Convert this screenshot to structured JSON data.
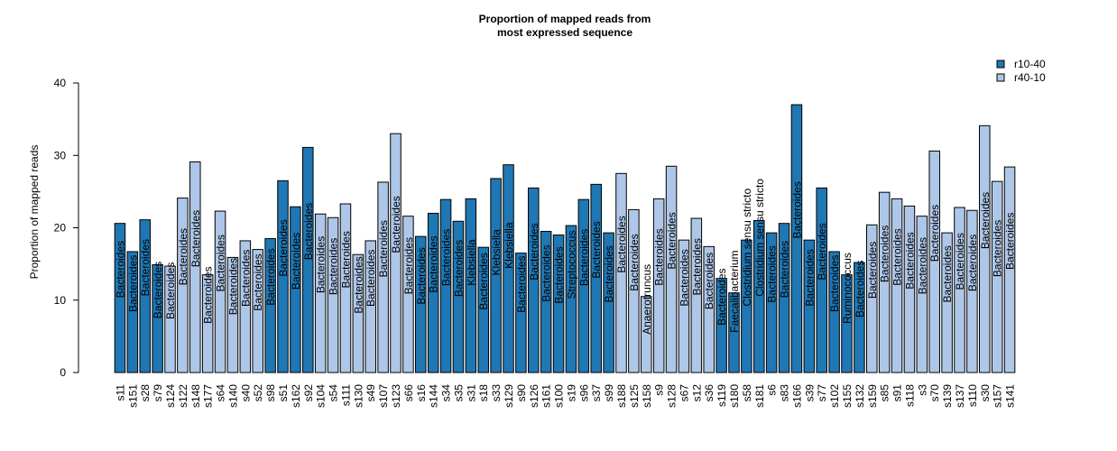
{
  "chart_data": {
    "type": "bar",
    "title_lines": [
      "Proportion of mapped reads from",
      "most expressed sequence"
    ],
    "xlabel": "",
    "ylabel": "Proportion of mapped reads",
    "ylim": [
      0,
      40
    ],
    "yticks": [
      "0",
      "10",
      "20",
      "30",
      "40"
    ],
    "grid": false,
    "legend_position": "top-right",
    "legend": [
      {
        "name": "r10-40",
        "color": "#1f77b4"
      },
      {
        "name": "r40-10",
        "color": "#aec7e8"
      }
    ],
    "bars": [
      {
        "sample": "s11",
        "value": 20.6,
        "group": "r10-40",
        "genus": "Bacteroides"
      },
      {
        "sample": "s151",
        "value": 16.7,
        "group": "r10-40",
        "genus": "Bacteroides"
      },
      {
        "sample": "s28",
        "value": 21.1,
        "group": "r10-40",
        "genus": "Bacteroides"
      },
      {
        "sample": "s79",
        "value": 14.9,
        "group": "r10-40",
        "genus": "Bacteroides"
      },
      {
        "sample": "s124",
        "value": 14.7,
        "group": "r40-10",
        "genus": "Bacteroides"
      },
      {
        "sample": "s122",
        "value": 24.1,
        "group": "r40-10",
        "genus": "Bacteroides"
      },
      {
        "sample": "s148",
        "value": 29.1,
        "group": "r40-10",
        "genus": "Bacteroides"
      },
      {
        "sample": "s177",
        "value": 13.5,
        "group": "r40-10",
        "genus": "Bacteroides"
      },
      {
        "sample": "s64",
        "value": 22.3,
        "group": "r40-10",
        "genus": "Bacteroides"
      },
      {
        "sample": "s140",
        "value": 15.9,
        "group": "r40-10",
        "genus": "Bacteroides"
      },
      {
        "sample": "s40",
        "value": 18.2,
        "group": "r40-10",
        "genus": "Bacteroides"
      },
      {
        "sample": "s52",
        "value": 17.0,
        "group": "r40-10",
        "genus": "Bacteroides"
      },
      {
        "sample": "s98",
        "value": 18.5,
        "group": "r10-40",
        "genus": "Bacteroides"
      },
      {
        "sample": "s51",
        "value": 26.5,
        "group": "r10-40",
        "genus": "Bacteroides"
      },
      {
        "sample": "s162",
        "value": 22.9,
        "group": "r10-40",
        "genus": "Bacteroides"
      },
      {
        "sample": "s92",
        "value": 31.1,
        "group": "r10-40",
        "genus": "Bacteroides"
      },
      {
        "sample": "s104",
        "value": 21.9,
        "group": "r40-10",
        "genus": "Bacteroides"
      },
      {
        "sample": "s54",
        "value": 21.4,
        "group": "r40-10",
        "genus": "Bacteroides"
      },
      {
        "sample": "s111",
        "value": 23.3,
        "group": "r40-10",
        "genus": "Bacteroides"
      },
      {
        "sample": "s130",
        "value": 16.3,
        "group": "r40-10",
        "genus": "Bacteroides"
      },
      {
        "sample": "s49",
        "value": 18.2,
        "group": "r40-10",
        "genus": "Bacteroides"
      },
      {
        "sample": "s107",
        "value": 26.3,
        "group": "r40-10",
        "genus": "Bacteroides"
      },
      {
        "sample": "s123",
        "value": 33.0,
        "group": "r40-10",
        "genus": "Bacteroides"
      },
      {
        "sample": "s66",
        "value": 21.6,
        "group": "r40-10",
        "genus": "Bacteroides"
      },
      {
        "sample": "s16",
        "value": 18.8,
        "group": "r10-40",
        "genus": "Bacteroides"
      },
      {
        "sample": "s144",
        "value": 22.0,
        "group": "r10-40",
        "genus": "Bacteroides"
      },
      {
        "sample": "s34",
        "value": 23.9,
        "group": "r10-40",
        "genus": "Bacteroides"
      },
      {
        "sample": "s35",
        "value": 20.9,
        "group": "r10-40",
        "genus": "Bacteroides"
      },
      {
        "sample": "s31",
        "value": 24.0,
        "group": "r10-40",
        "genus": "Klebsiella"
      },
      {
        "sample": "s18",
        "value": 17.3,
        "group": "r10-40",
        "genus": "Bacteroides"
      },
      {
        "sample": "s33",
        "value": 26.8,
        "group": "r10-40",
        "genus": "Klebsiella"
      },
      {
        "sample": "s129",
        "value": 28.7,
        "group": "r10-40",
        "genus": "Klebsiella"
      },
      {
        "sample": "s90",
        "value": 16.5,
        "group": "r10-40",
        "genus": "Bacteroides"
      },
      {
        "sample": "s126",
        "value": 25.5,
        "group": "r10-40",
        "genus": "Bacteroides"
      },
      {
        "sample": "s161",
        "value": 19.5,
        "group": "r10-40",
        "genus": "Bacteroides"
      },
      {
        "sample": "s100",
        "value": 19.0,
        "group": "r10-40",
        "genus": "Bacteroides"
      },
      {
        "sample": "s19",
        "value": 20.3,
        "group": "r10-40",
        "genus": "Streptococcus"
      },
      {
        "sample": "s96",
        "value": 23.9,
        "group": "r10-40",
        "genus": "Bacteroides"
      },
      {
        "sample": "s37",
        "value": 26.0,
        "group": "r10-40",
        "genus": "Bacteroides"
      },
      {
        "sample": "s99",
        "value": 19.3,
        "group": "r10-40",
        "genus": "Bacteroides"
      },
      {
        "sample": "s188",
        "value": 27.5,
        "group": "r40-10",
        "genus": "Bacteroides"
      },
      {
        "sample": "s125",
        "value": 22.5,
        "group": "r40-10",
        "genus": "Bacteroides"
      },
      {
        "sample": "s158",
        "value": 10.5,
        "group": "r40-10",
        "genus": "Anaerotruncus"
      },
      {
        "sample": "s9",
        "value": 24.0,
        "group": "r40-10",
        "genus": "Bacteroides"
      },
      {
        "sample": "s128",
        "value": 28.5,
        "group": "r40-10",
        "genus": "Bacteroides"
      },
      {
        "sample": "s67",
        "value": 18.3,
        "group": "r40-10",
        "genus": "Bacteroides"
      },
      {
        "sample": "s12",
        "value": 21.3,
        "group": "r40-10",
        "genus": "Bacteroides"
      },
      {
        "sample": "s36",
        "value": 17.4,
        "group": "r40-10",
        "genus": "Bacteroides"
      },
      {
        "sample": "s119",
        "value": 13.0,
        "group": "r10-40",
        "genus": "Bacteroides"
      },
      {
        "sample": "s180",
        "value": 11.0,
        "group": "r10-40",
        "genus": "Faecalibacterium"
      },
      {
        "sample": "s58",
        "value": 18.3,
        "group": "r10-40",
        "genus": "Clostridium sensu stricto"
      },
      {
        "sample": "s181",
        "value": 21.0,
        "group": "r10-40",
        "genus": "Clostridium sensu stricto"
      },
      {
        "sample": "s6",
        "value": 19.3,
        "group": "r10-40",
        "genus": "Bacteroides"
      },
      {
        "sample": "s83",
        "value": 20.6,
        "group": "r10-40",
        "genus": "Bacteroides"
      },
      {
        "sample": "s166",
        "value": 37.0,
        "group": "r10-40",
        "genus": "Bacteroides"
      },
      {
        "sample": "s39",
        "value": 18.3,
        "group": "r10-40",
        "genus": "Bacteroides"
      },
      {
        "sample": "s77",
        "value": 25.5,
        "group": "r10-40",
        "genus": "Bacteroides"
      },
      {
        "sample": "s102",
        "value": 16.7,
        "group": "r10-40",
        "genus": "Bacteroides"
      },
      {
        "sample": "s155",
        "value": 13.5,
        "group": "r10-40",
        "genus": "Ruminococcus"
      },
      {
        "sample": "s132",
        "value": 15.2,
        "group": "r10-40",
        "genus": "Bacteroides"
      },
      {
        "sample": "s159",
        "value": 20.4,
        "group": "r40-10",
        "genus": "Bacteroides"
      },
      {
        "sample": "s85",
        "value": 24.9,
        "group": "r40-10",
        "genus": "Bacteroides"
      },
      {
        "sample": "s91",
        "value": 24.0,
        "group": "r40-10",
        "genus": "Bacteroides"
      },
      {
        "sample": "s118",
        "value": 23.0,
        "group": "r40-10",
        "genus": "Bacteroides"
      },
      {
        "sample": "s3",
        "value": 21.6,
        "group": "r40-10",
        "genus": "Bacteroides"
      },
      {
        "sample": "s70",
        "value": 30.6,
        "group": "r40-10",
        "genus": "Bacteroides"
      },
      {
        "sample": "s139",
        "value": 19.3,
        "group": "r40-10",
        "genus": "Bacteroides"
      },
      {
        "sample": "s137",
        "value": 22.8,
        "group": "r40-10",
        "genus": "Bacteroides"
      },
      {
        "sample": "s110",
        "value": 22.4,
        "group": "r40-10",
        "genus": "Bacteroides"
      },
      {
        "sample": "s30",
        "value": 34.1,
        "group": "r40-10",
        "genus": "Bacteroides"
      },
      {
        "sample": "s157",
        "value": 26.4,
        "group": "r40-10",
        "genus": "Bacteroides"
      },
      {
        "sample": "s141",
        "value": 28.4,
        "group": "r40-10",
        "genus": "Bacteroides"
      }
    ]
  }
}
